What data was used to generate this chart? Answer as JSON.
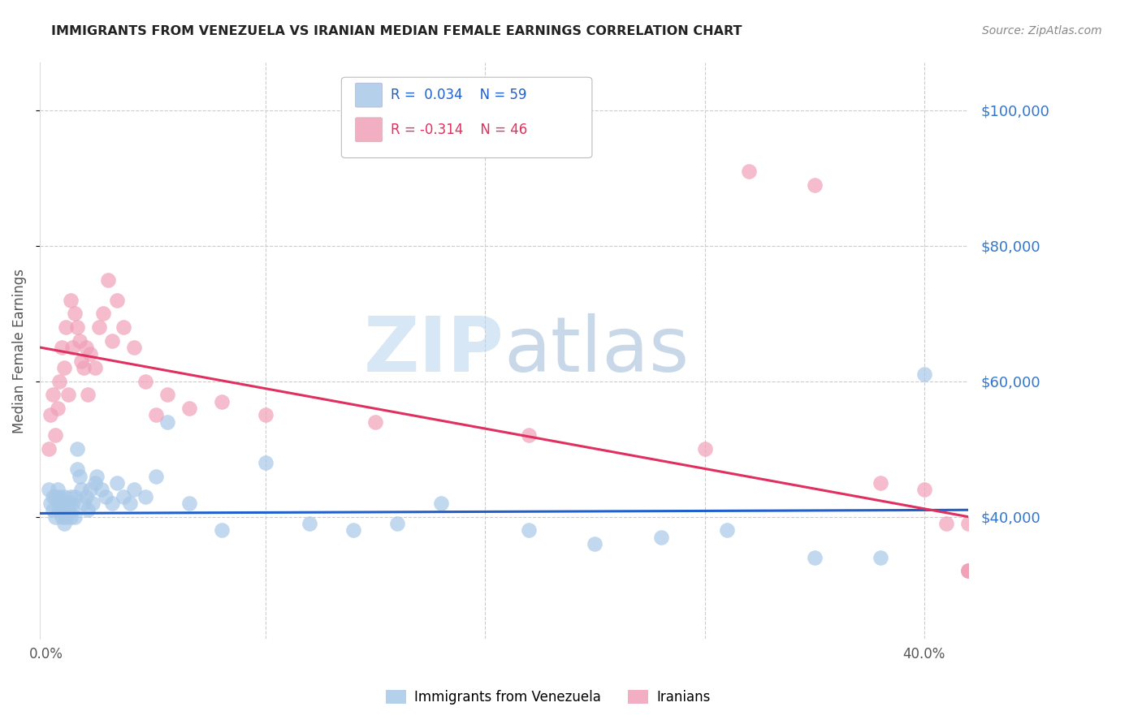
{
  "title": "IMMIGRANTS FROM VENEZUELA VS IRANIAN MEDIAN FEMALE EARNINGS CORRELATION CHART",
  "source": "Source: ZipAtlas.com",
  "ylabel": "Median Female Earnings",
  "ytick_labels": [
    "$40,000",
    "$60,000",
    "$80,000",
    "$100,000"
  ],
  "ytick_values": [
    40000,
    60000,
    80000,
    100000
  ],
  "ymin": 22000,
  "ymax": 107000,
  "xmin": -0.003,
  "xmax": 0.42,
  "watermark_zip": "ZIP",
  "watermark_atlas": "atlas",
  "blue_color": "#a8c8e8",
  "pink_color": "#f0a0b8",
  "blue_line_color": "#2060cc",
  "pink_line_color": "#e03060",
  "grid_color": "#cccccc",
  "title_color": "#222222",
  "right_tick_color": "#3377cc",
  "blue_x": [
    0.001,
    0.002,
    0.003,
    0.003,
    0.004,
    0.004,
    0.005,
    0.005,
    0.006,
    0.006,
    0.007,
    0.007,
    0.008,
    0.008,
    0.009,
    0.009,
    0.01,
    0.01,
    0.011,
    0.011,
    0.012,
    0.012,
    0.013,
    0.013,
    0.014,
    0.014,
    0.015,
    0.016,
    0.017,
    0.018,
    0.019,
    0.02,
    0.021,
    0.022,
    0.023,
    0.025,
    0.027,
    0.03,
    0.032,
    0.035,
    0.038,
    0.04,
    0.045,
    0.05,
    0.055,
    0.065,
    0.08,
    0.1,
    0.12,
    0.14,
    0.16,
    0.18,
    0.22,
    0.25,
    0.28,
    0.31,
    0.35,
    0.38,
    0.4
  ],
  "blue_y": [
    44000,
    42000,
    43000,
    41000,
    40000,
    43000,
    42000,
    44000,
    41000,
    43000,
    40000,
    42000,
    39000,
    43000,
    41000,
    40000,
    42000,
    41000,
    43000,
    40000,
    42000,
    41000,
    43000,
    40000,
    47000,
    50000,
    46000,
    44000,
    42000,
    43000,
    41000,
    44000,
    42000,
    45000,
    46000,
    44000,
    43000,
    42000,
    45000,
    43000,
    42000,
    44000,
    43000,
    46000,
    54000,
    42000,
    38000,
    48000,
    39000,
    38000,
    39000,
    42000,
    38000,
    36000,
    37000,
    38000,
    34000,
    34000,
    61000
  ],
  "pink_x": [
    0.001,
    0.002,
    0.003,
    0.004,
    0.005,
    0.006,
    0.007,
    0.008,
    0.009,
    0.01,
    0.011,
    0.012,
    0.013,
    0.014,
    0.015,
    0.016,
    0.017,
    0.018,
    0.019,
    0.02,
    0.022,
    0.024,
    0.026,
    0.028,
    0.03,
    0.032,
    0.035,
    0.04,
    0.045,
    0.05,
    0.055,
    0.065,
    0.08,
    0.1,
    0.15,
    0.22,
    0.3,
    0.32,
    0.35,
    0.38,
    0.4,
    0.41,
    0.42,
    0.42,
    0.42,
    0.42
  ],
  "pink_y": [
    50000,
    55000,
    58000,
    52000,
    56000,
    60000,
    65000,
    62000,
    68000,
    58000,
    72000,
    65000,
    70000,
    68000,
    66000,
    63000,
    62000,
    65000,
    58000,
    64000,
    62000,
    68000,
    70000,
    75000,
    66000,
    72000,
    68000,
    65000,
    60000,
    55000,
    58000,
    56000,
    57000,
    55000,
    54000,
    52000,
    50000,
    91000,
    89000,
    45000,
    44000,
    39000,
    39000,
    32000,
    32000,
    32000
  ]
}
